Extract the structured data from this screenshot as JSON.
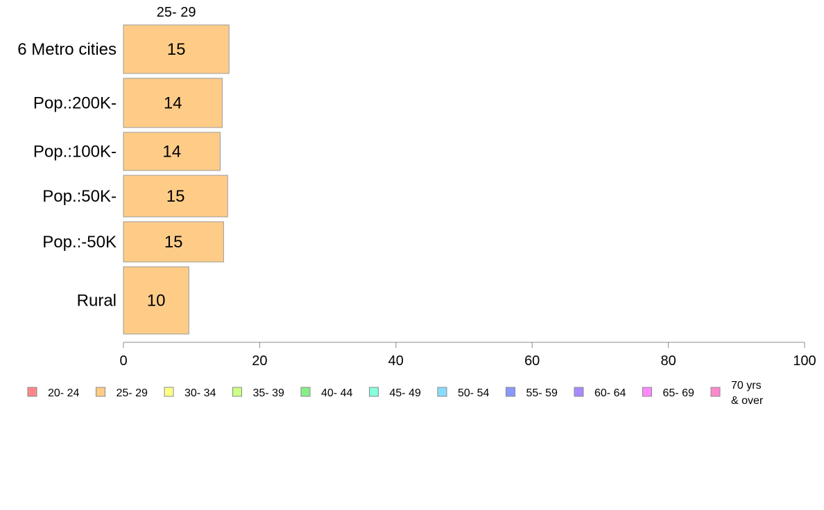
{
  "chart_data": {
    "type": "bar",
    "orientation": "horizontal",
    "stacked": true,
    "categories": [
      "6 Metro cities",
      "Pop.:200K-",
      "Pop.:100K-",
      "Pop.:50K-",
      "Pop.:-50K",
      "Rural"
    ],
    "series": [
      {
        "name": "25- 29",
        "values": [
          15.5,
          14.5,
          14.2,
          15.3,
          14.7,
          9.6
        ],
        "labels": [
          "15",
          "14",
          "14",
          "15",
          "15",
          "10"
        ],
        "color": "#ffcc88"
      }
    ],
    "top_label": "25- 29",
    "xlim": [
      0,
      100
    ],
    "xticks": [
      0,
      20,
      40,
      60,
      80,
      100
    ],
    "xtick_labels": [
      "0",
      "20",
      "40",
      "60",
      "80",
      "100"
    ],
    "grid": false,
    "legend_position": "bottom",
    "legend": [
      {
        "label": "20- 24",
        "color": "#ff8888"
      },
      {
        "label": "25- 29",
        "color": "#ffcc88"
      },
      {
        "label": "30- 34",
        "color": "#ffff88"
      },
      {
        "label": "35- 39",
        "color": "#ccff88"
      },
      {
        "label": "40- 44",
        "color": "#88ee88"
      },
      {
        "label": "45- 49",
        "color": "#88ffdd"
      },
      {
        "label": "50- 54",
        "color": "#88ddff"
      },
      {
        "label": "55- 59",
        "color": "#8899ff"
      },
      {
        "label": "60- 64",
        "color": "#aa88ff"
      },
      {
        "label": "65- 69",
        "color": "#ff88ff"
      },
      {
        "label": "70 yrs\n& over",
        "color": "#ff88cc"
      }
    ],
    "border_color": "#999999",
    "axis_color": "#888888"
  }
}
